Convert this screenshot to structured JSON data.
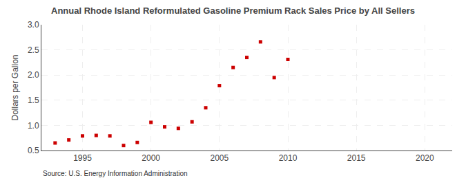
{
  "chart_data": {
    "type": "scatter",
    "title": "Annual Rhode Island Reformulated Gasoline Premium Rack Sales Price by All Sellers",
    "y_label": "Dollars per Gallon",
    "annotations": [
      "Source: U.S. Energy Information Administration"
    ],
    "x": [
      1993,
      1994,
      1995,
      1996,
      1997,
      1998,
      1999,
      2000,
      2001,
      2002,
      2003,
      2004,
      2005,
      2006,
      2007,
      2008,
      2009,
      2010
    ],
    "values": [
      0.65,
      0.71,
      0.79,
      0.8,
      0.79,
      0.6,
      0.66,
      1.06,
      0.97,
      0.94,
      1.07,
      1.35,
      1.79,
      2.15,
      2.35,
      2.66,
      1.95,
      2.31
    ],
    "color": "#cc0000",
    "marker": "square",
    "xlim": [
      1992,
      2022
    ],
    "ylim": [
      0.5,
      3.0
    ],
    "xticks": [
      1995,
      2000,
      2005,
      2010,
      2015,
      2020
    ],
    "yticks": [
      0.5,
      {
        "value": 1.0,
        "label": "1.0"
      },
      1.5,
      {
        "value": 2.0,
        "label": "2.0"
      },
      2.5,
      {
        "value": 3.0,
        "label": "3.0"
      }
    ],
    "grid": true
  }
}
